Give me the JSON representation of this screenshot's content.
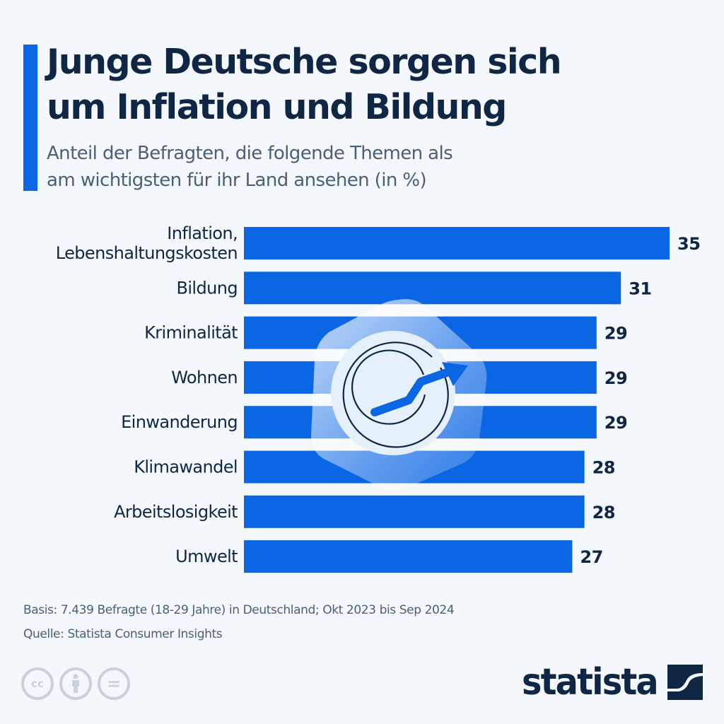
{
  "header": {
    "title": "Junge Deutsche sorgen sich\num Inflation und Bildung",
    "subtitle": "Anteil der Befragten, die folgende Themen als\nam wichtigsten für ihr Land ansehen (in %)"
  },
  "colors": {
    "accent": "#0b66e4",
    "bar": "#0b66e4",
    "text_dark": "#0f2744",
    "text_muted": "#4b5f78",
    "background": "#f4f7fb"
  },
  "chart_data": {
    "type": "bar",
    "orientation": "horizontal",
    "title": "Junge Deutsche sorgen sich um Inflation und Bildung",
    "subtitle": "Anteil der Befragten, die folgende Themen als am wichtigsten für ihr Land ansehen (in %)",
    "categories": [
      [
        "Inflation,",
        "Lebenshaltungskosten"
      ],
      [
        "Bildung"
      ],
      [
        "Kriminalität"
      ],
      [
        "Wohnen"
      ],
      [
        "Einwanderung"
      ],
      [
        "Klimawandel"
      ],
      [
        "Arbeitslosigkeit"
      ],
      [
        "Umwelt"
      ]
    ],
    "values": [
      35,
      31,
      29,
      29,
      29,
      28,
      28,
      27
    ],
    "value_labels": [
      "35",
      "31",
      "29",
      "29",
      "29",
      "28",
      "28",
      "27"
    ],
    "xlabel": "",
    "ylabel": "",
    "xlim": [
      0,
      35
    ],
    "grid": false,
    "legend": null,
    "unit": "%"
  },
  "illustration": {
    "icon": "growth-chart-arrow-icon"
  },
  "footer": {
    "basis": "Basis: 7.439 Befragte (18-29 Jahre) in Deutschland; Okt 2023 bis Sep 2024",
    "source": "Quelle: Statista Consumer Insights",
    "license_icons": [
      {
        "name": "cc-icon",
        "glyph": "cc"
      },
      {
        "name": "attribution-icon",
        "glyph": ""
      },
      {
        "name": "no-derivatives-icon",
        "glyph": "="
      }
    ],
    "brand": "statista"
  }
}
